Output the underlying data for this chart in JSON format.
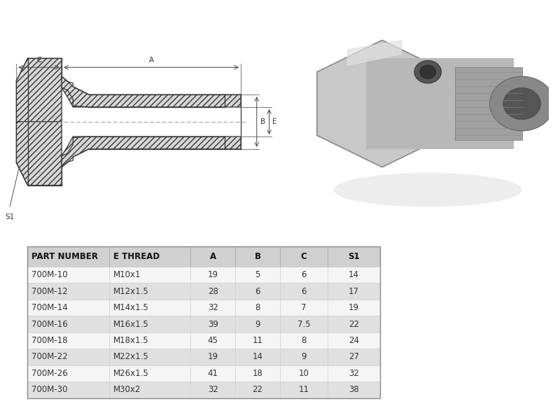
{
  "background_color": "#ffffff",
  "table_headers": [
    "PART NUMBER",
    "E THREAD",
    "A",
    "B",
    "C",
    "S1"
  ],
  "table_data": [
    [
      "700M-10",
      "M10x1",
      "19",
      "5",
      "6",
      "14"
    ],
    [
      "700M-12",
      "M12x1.5",
      "28",
      "6",
      "6",
      "17"
    ],
    [
      "700M-14",
      "M14x1.5",
      "32",
      "8",
      "7",
      "19"
    ],
    [
      "700M-16",
      "M16x1.5",
      "39",
      "9",
      "7.5",
      "22"
    ],
    [
      "700M-18",
      "M18x1.5",
      "45",
      "11",
      "8",
      "24"
    ],
    [
      "700M-22",
      "M22x1.5",
      "19",
      "14",
      "9",
      "27"
    ],
    [
      "700M-26",
      "M26x1.5",
      "41",
      "18",
      "10",
      "32"
    ],
    [
      "700M-30",
      "M30x2",
      "32",
      "22",
      "11",
      "38"
    ]
  ],
  "row_colors": [
    "#f5f5f5",
    "#e0e0e0",
    "#f5f5f5",
    "#e0e0e0",
    "#f5f5f5",
    "#e0e0e0",
    "#f5f5f5",
    "#e0e0e0"
  ],
  "header_color": "#d0d0d0",
  "header_text_color": "#111111",
  "cell_text_color": "#333333",
  "line_color": "#333333",
  "hatch_color": "#555555",
  "table_fontsize": 8.5,
  "header_fontsize": 8.5,
  "diagram_label_fontsize": 7.5
}
